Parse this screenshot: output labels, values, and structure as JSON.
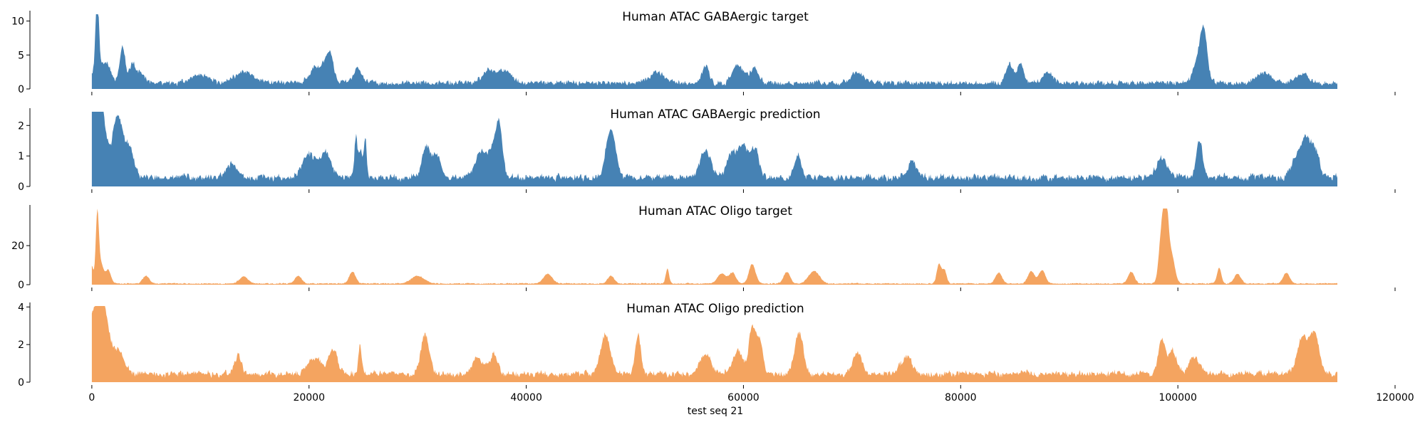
{
  "chart_data": {
    "type": "area",
    "xlabel": "test seq 21",
    "xlim": [
      -5700,
      120000
    ],
    "x_ticks": [
      0,
      20000,
      40000,
      60000,
      80000,
      100000,
      120000
    ],
    "x_tick_labels": [
      "0",
      "20000",
      "40000",
      "60000",
      "80000",
      "100000",
      "120000"
    ],
    "x_data_range": [
      0,
      114688
    ],
    "grid": false,
    "legend": "none",
    "panels": [
      {
        "title": "Human ATAC GABAergic target",
        "color": "#4682B4",
        "ylim": [
          0,
          11
        ],
        "y_ticks": [
          0,
          5,
          10
        ],
        "y_tick_labels": [
          "0",
          "5",
          "10"
        ],
        "baseline": 0.9,
        "noise": 0.45,
        "seed": 11,
        "peaks": [
          [
            500,
            10.8,
            140
          ],
          [
            600,
            3.2,
            500
          ],
          [
            1500,
            2.2,
            300
          ],
          [
            2700,
            2.6,
            250
          ],
          [
            2900,
            3.3,
            200
          ],
          [
            3700,
            2.8,
            300
          ],
          [
            4500,
            1.5,
            400
          ],
          [
            10000,
            1.2,
            800
          ],
          [
            14000,
            1.6,
            900
          ],
          [
            20500,
            2.2,
            500
          ],
          [
            21500,
            2.6,
            400
          ],
          [
            22000,
            3.2,
            300
          ],
          [
            24500,
            2.0,
            400
          ],
          [
            36500,
            1.8,
            500
          ],
          [
            38000,
            1.9,
            600
          ],
          [
            52000,
            1.6,
            700
          ],
          [
            56500,
            2.6,
            300
          ],
          [
            59500,
            2.6,
            500
          ],
          [
            61000,
            2.2,
            400
          ],
          [
            70500,
            1.6,
            600
          ],
          [
            84500,
            3.0,
            300
          ],
          [
            85500,
            2.8,
            300
          ],
          [
            88000,
            1.5,
            500
          ],
          [
            102000,
            4.0,
            500
          ],
          [
            102400,
            5.5,
            300
          ],
          [
            108000,
            1.4,
            700
          ],
          [
            111500,
            1.6,
            500
          ]
        ]
      },
      {
        "title": "Human ATAC GABAergic prediction",
        "color": "#4682B4",
        "ylim": [
          0,
          2.45
        ],
        "y_ticks": [
          0,
          1,
          2
        ],
        "y_tick_labels": [
          "0",
          "1",
          "2"
        ],
        "baseline": 0.3,
        "noise": 0.12,
        "seed": 23,
        "peaks": [
          [
            0,
            1.05,
            150
          ],
          [
            500,
            2.35,
            350
          ],
          [
            900,
            1.8,
            500
          ],
          [
            2200,
            1.5,
            350
          ],
          [
            2700,
            1.1,
            350
          ],
          [
            3500,
            1.0,
            400
          ],
          [
            13000,
            0.5,
            500
          ],
          [
            20000,
            0.75,
            600
          ],
          [
            21500,
            0.85,
            500
          ],
          [
            24300,
            1.0,
            120
          ],
          [
            24700,
            0.9,
            300
          ],
          [
            25200,
            1.05,
            120
          ],
          [
            30800,
            0.95,
            400
          ],
          [
            31800,
            0.7,
            400
          ],
          [
            35800,
            0.8,
            500
          ],
          [
            37000,
            0.85,
            500
          ],
          [
            37500,
            1.35,
            300
          ],
          [
            47800,
            1.6,
            450
          ],
          [
            56500,
            0.9,
            500
          ],
          [
            59000,
            0.8,
            500
          ],
          [
            60000,
            0.9,
            400
          ],
          [
            61000,
            1.0,
            400
          ],
          [
            65000,
            0.75,
            300
          ],
          [
            75500,
            0.55,
            400
          ],
          [
            98500,
            0.65,
            500
          ],
          [
            102000,
            1.15,
            300
          ],
          [
            111000,
            0.7,
            500
          ],
          [
            111800,
            1.05,
            400
          ],
          [
            112600,
            0.9,
            400
          ]
        ]
      },
      {
        "title": "Human ATAC Oligo target",
        "color": "#F4A460",
        "ylim": [
          0,
          39
        ],
        "y_ticks": [
          0,
          20
        ],
        "y_tick_labels": [
          "0",
          "20"
        ],
        "baseline": 0.6,
        "noise": 0.4,
        "seed": 37,
        "peaks": [
          [
            0,
            9.0,
            150
          ],
          [
            500,
            33.0,
            140
          ],
          [
            800,
            10.5,
            250
          ],
          [
            1500,
            7.0,
            250
          ],
          [
            5000,
            4.0,
            300
          ],
          [
            14000,
            3.5,
            400
          ],
          [
            19000,
            4.0,
            300
          ],
          [
            24000,
            6.0,
            300
          ],
          [
            30000,
            4.0,
            600
          ],
          [
            42000,
            5.0,
            400
          ],
          [
            47800,
            4.0,
            300
          ],
          [
            53000,
            7.5,
            150
          ],
          [
            58000,
            5.0,
            400
          ],
          [
            59000,
            5.5,
            300
          ],
          [
            60800,
            10.0,
            300
          ],
          [
            64000,
            6.0,
            300
          ],
          [
            66500,
            6.5,
            500
          ],
          [
            78000,
            10.0,
            200
          ],
          [
            78500,
            7.0,
            200
          ],
          [
            83500,
            5.5,
            300
          ],
          [
            86500,
            6.5,
            300
          ],
          [
            87500,
            7.0,
            300
          ],
          [
            95700,
            6.0,
            300
          ],
          [
            98500,
            25.0,
            250
          ],
          [
            98900,
            36.5,
            220
          ],
          [
            99400,
            15.0,
            300
          ],
          [
            103800,
            8.0,
            200
          ],
          [
            105500,
            5.0,
            300
          ],
          [
            110000,
            5.5,
            300
          ]
        ]
      },
      {
        "title": "Human ATAC Oligo prediction",
        "color": "#F4A460",
        "ylim": [
          0,
          4.05
        ],
        "y_ticks": [
          0,
          2,
          4
        ],
        "y_tick_labels": [
          "0",
          "2",
          "4"
        ],
        "baseline": 0.45,
        "noise": 0.18,
        "seed": 53,
        "peaks": [
          [
            0,
            1.6,
            150
          ],
          [
            600,
            3.8,
            450
          ],
          [
            1200,
            2.3,
            500
          ],
          [
            2500,
            1.3,
            500
          ],
          [
            13500,
            1.0,
            300
          ],
          [
            20500,
            0.9,
            600
          ],
          [
            22200,
            1.3,
            400
          ],
          [
            24700,
            1.5,
            150
          ],
          [
            30700,
            2.05,
            400
          ],
          [
            35500,
            0.9,
            500
          ],
          [
            37000,
            1.0,
            400
          ],
          [
            47300,
            2.1,
            450
          ],
          [
            50300,
            2.1,
            250
          ],
          [
            56500,
            1.0,
            500
          ],
          [
            59500,
            1.2,
            500
          ],
          [
            60800,
            2.4,
            300
          ],
          [
            61500,
            1.8,
            300
          ],
          [
            65100,
            2.25,
            400
          ],
          [
            70500,
            1.2,
            400
          ],
          [
            75000,
            0.9,
            500
          ],
          [
            98500,
            1.85,
            300
          ],
          [
            99500,
            1.2,
            400
          ],
          [
            101500,
            0.9,
            500
          ],
          [
            111500,
            2.0,
            500
          ],
          [
            112600,
            2.1,
            400
          ]
        ]
      }
    ]
  }
}
